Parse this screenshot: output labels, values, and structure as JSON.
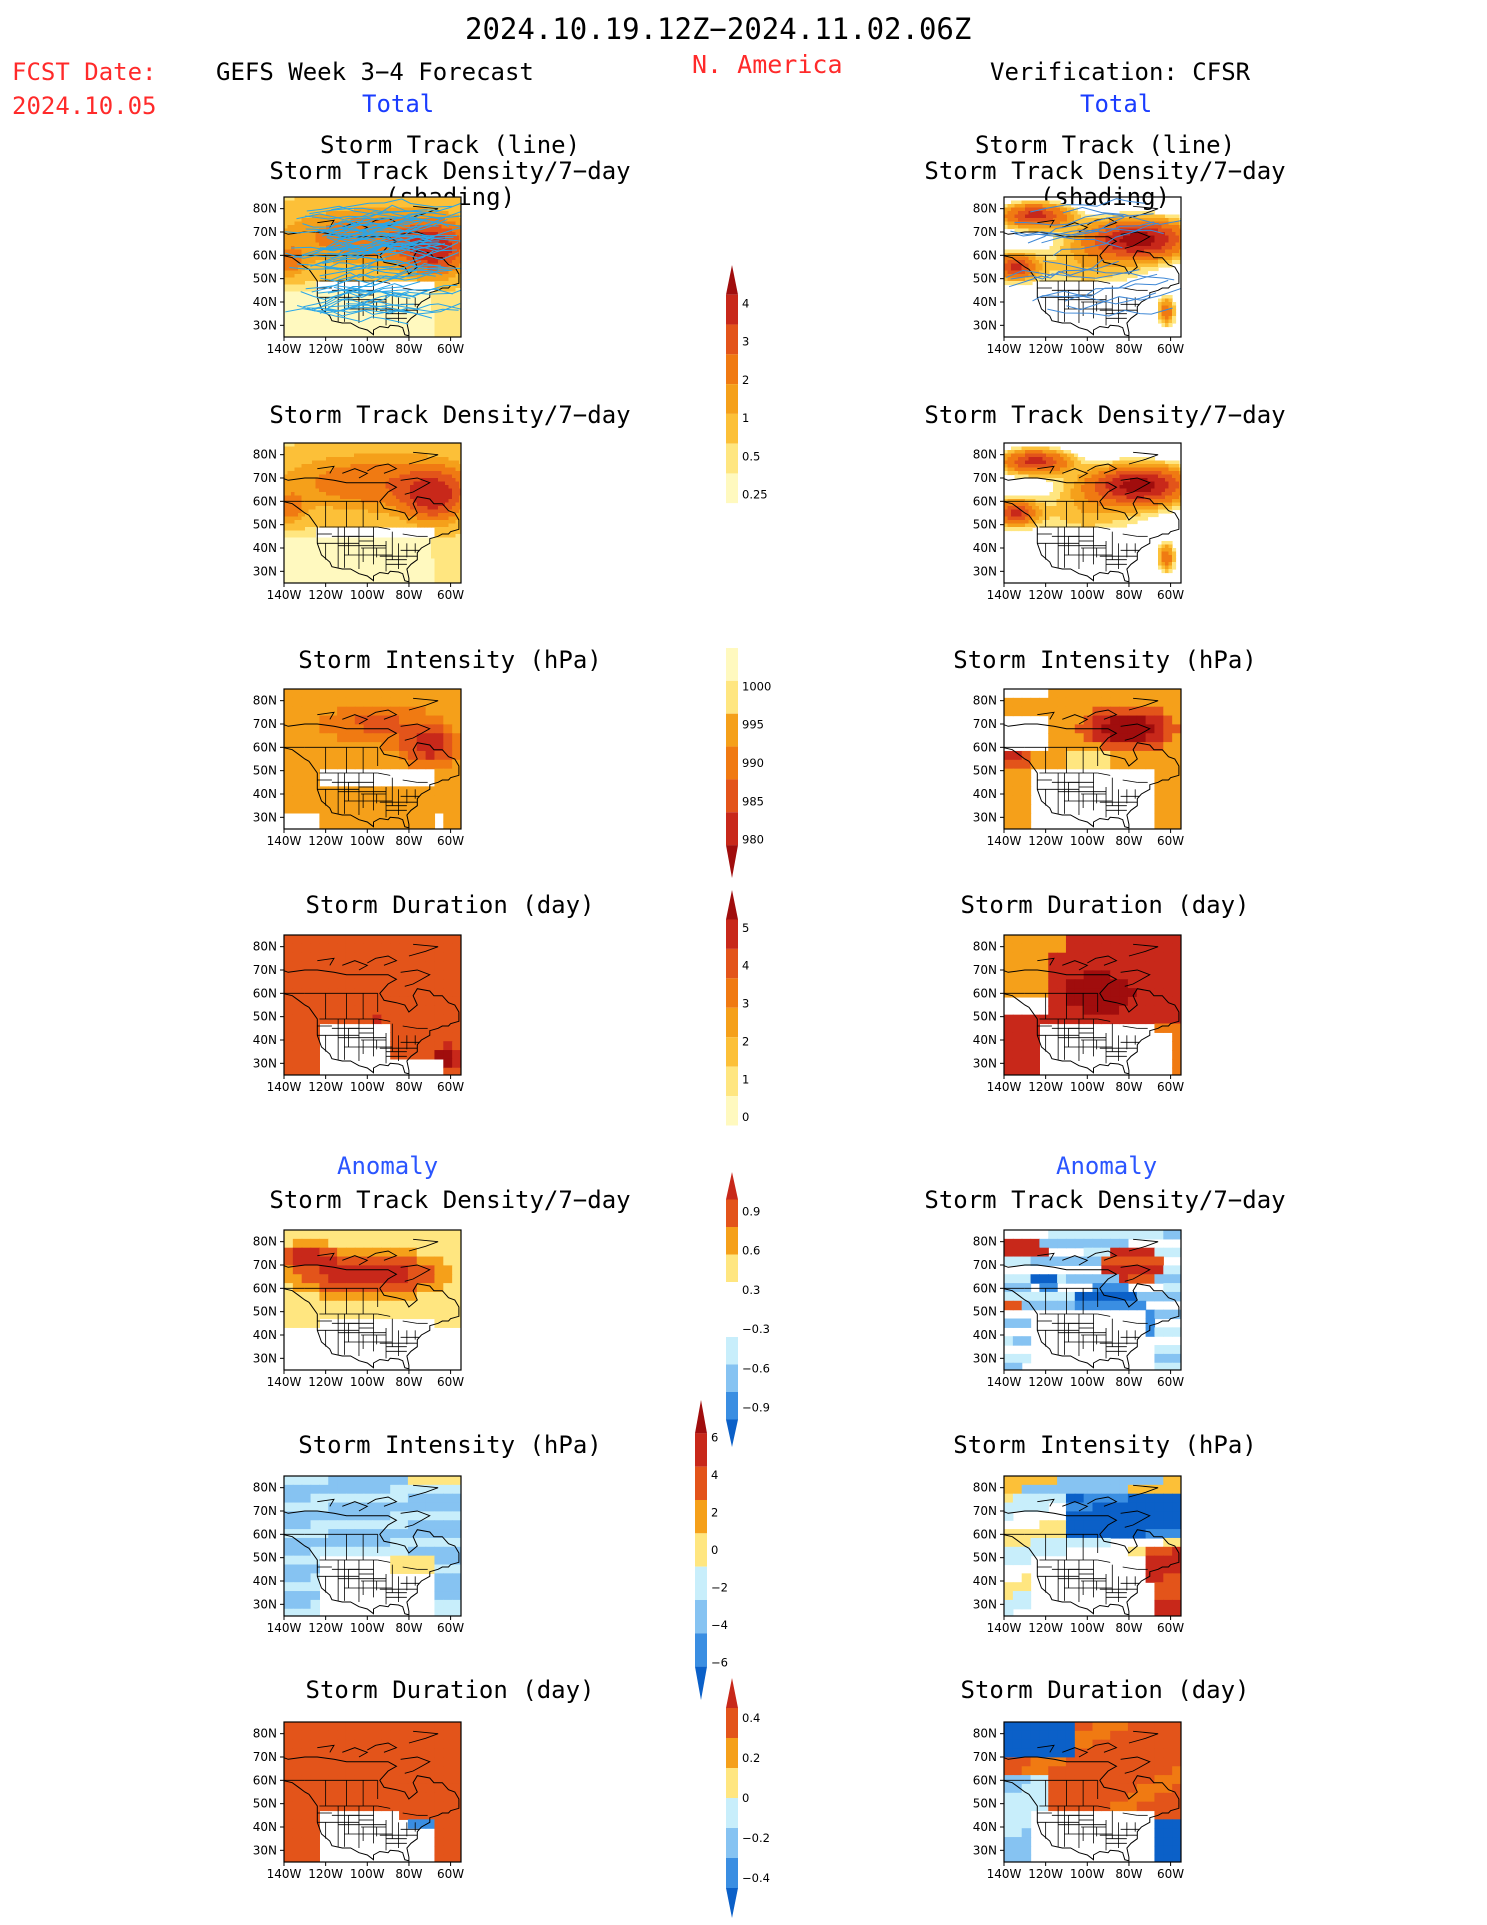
{
  "header": {
    "period": "2024.10.19.12Z−2024.11.02.06Z",
    "region": "N. America",
    "fcst_label": "FCST Date:",
    "fcst_date": "2024.10.05",
    "left_product": "GEFS Week 3−4 Forecast",
    "right_product": "Verification: CFSR",
    "left_section": "Total",
    "right_section": "Total"
  },
  "sections": {
    "anomaly_left": "Anomaly",
    "anomaly_right": "Anomaly"
  },
  "panel_titles": {
    "track_line": "Storm Track (line)",
    "track_shading": "Storm Track Density/7−day (shading)",
    "density": "Storm Track Density/7−day",
    "intensity": "Storm Intensity (hPa)",
    "duration": "Storm Duration (day)"
  },
  "axes": {
    "lat_labels": [
      "80N",
      "70N",
      "60N",
      "50N",
      "40N",
      "30N"
    ],
    "lon_labels": [
      "140W",
      "120W",
      "100W",
      "80W",
      "60W"
    ]
  },
  "colors": {
    "warm": [
      "#fff9bf",
      "#ffe680",
      "#fcc038",
      "#f5a01a",
      "#f07a12",
      "#e3541a",
      "#c8281a",
      "#a00d0d"
    ],
    "cool": [
      "#0b60c8",
      "#3a8ee2",
      "#86c3f2",
      "#c8eefb"
    ],
    "track_line": "#2aa6e8",
    "track_line_obs": "#3f88d6",
    "header_red": "#ff2a2a",
    "header_blue": "#1a3cff",
    "anomaly_blue": "#2a55ff"
  },
  "colorbars": {
    "density_total": {
      "labels": [
        "4",
        "3",
        "2",
        "1",
        "0.5",
        "0.25"
      ]
    },
    "intensity_total": {
      "labels": [
        "1000",
        "995",
        "990",
        "985",
        "980"
      ]
    },
    "duration_total": {
      "labels": [
        "5",
        "4",
        "3",
        "2",
        "1",
        "0"
      ]
    },
    "density_anom": {
      "labels": [
        "0.9",
        "0.6",
        "0.3",
        "−0.3",
        "−0.6",
        "−0.9"
      ]
    },
    "intensity_anom": {
      "labels": [
        "6",
        "4",
        "2",
        "0",
        "−2",
        "−4",
        "−6"
      ]
    },
    "duration_anom": {
      "labels": [
        "0.4",
        "0.2",
        "0",
        "−0.2",
        "−0.4"
      ]
    }
  }
}
